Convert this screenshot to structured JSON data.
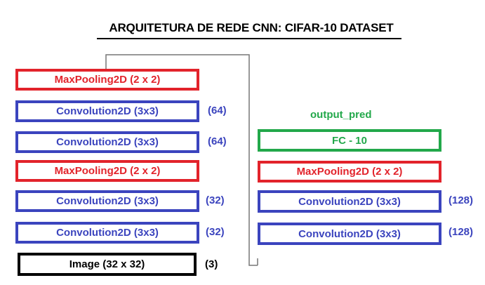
{
  "title": "ARQUITETURA DE REDE CNN: CIFAR-10 DATASET",
  "colors": {
    "maxpool": "#e2232b",
    "conv": "#3b44be",
    "fc": "#22a84a",
    "input": "#000000",
    "connector": "#777777"
  },
  "left_column": [
    {
      "label": "MaxPooling2D (2 x 2)",
      "type": "maxpool",
      "filters": ""
    },
    {
      "label": "Convolution2D (3x3)",
      "type": "conv",
      "filters": "(64)"
    },
    {
      "label": "Convolution2D (3x3)",
      "type": "conv",
      "filters": "(64)"
    },
    {
      "label": "MaxPooling2D (2 x 2)",
      "type": "maxpool",
      "filters": ""
    },
    {
      "label": "Convolution2D (3x3)",
      "type": "conv",
      "filters": "(32)"
    },
    {
      "label": "Convolution2D (3x3)",
      "type": "conv",
      "filters": "(32)"
    },
    {
      "label": "Image (32 x 32)",
      "type": "input",
      "filters": "(3)"
    }
  ],
  "right_column": [
    {
      "label": "FC - 10",
      "type": "fc",
      "filters": ""
    },
    {
      "label": "MaxPooling2D (2 x 2)",
      "type": "maxpool",
      "filters": ""
    },
    {
      "label": "Convolution2D (3x3)",
      "type": "conv",
      "filters": "(128)"
    },
    {
      "label": "Convolution2D (3x3)",
      "type": "conv",
      "filters": "(128)"
    }
  ],
  "output_label": "output_pred"
}
